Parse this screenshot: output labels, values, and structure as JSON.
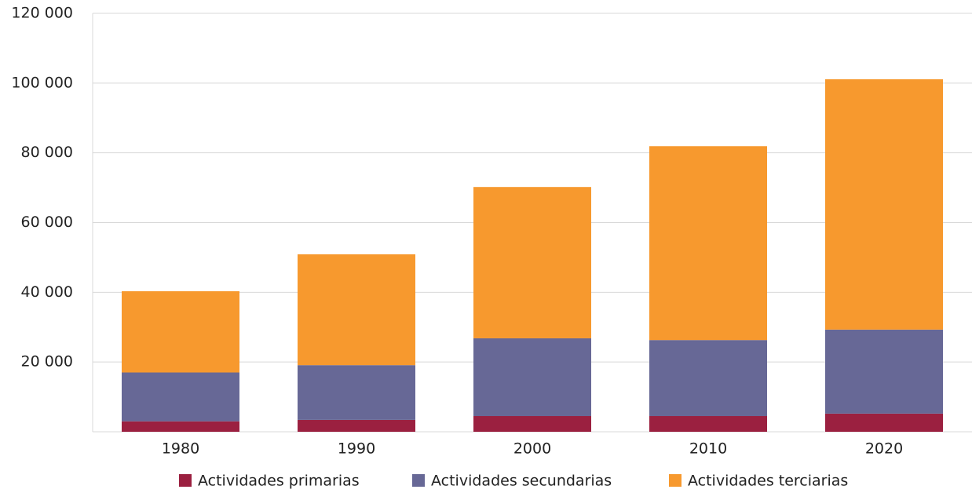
{
  "chart_data": {
    "type": "stacked-bar",
    "categories": [
      "1980",
      "1990",
      "2000",
      "2010",
      "2020"
    ],
    "series": [
      {
        "name": "Actividades primarias",
        "color": "#9b2040",
        "values": [
          3000,
          3400,
          4500,
          4500,
          5200
        ]
      },
      {
        "name": "Actividades secundarias",
        "color": "#676896",
        "values": [
          14000,
          15700,
          22300,
          21800,
          24100
        ]
      },
      {
        "name": "Actividades terciarias",
        "color": "#f7992e",
        "values": [
          23300,
          31800,
          43400,
          55600,
          71800
        ]
      }
    ],
    "ylim": [
      0,
      120000
    ],
    "yticks": [
      {
        "value": 20000,
        "label": "20 000"
      },
      {
        "value": 40000,
        "label": "40 000"
      },
      {
        "value": 60000,
        "label": "60 000"
      },
      {
        "value": 80000,
        "label": "80 000"
      },
      {
        "value": 100000,
        "label": "100 000"
      },
      {
        "value": 120000,
        "label": "120 000"
      }
    ],
    "grid": true,
    "legend": "bottom"
  }
}
